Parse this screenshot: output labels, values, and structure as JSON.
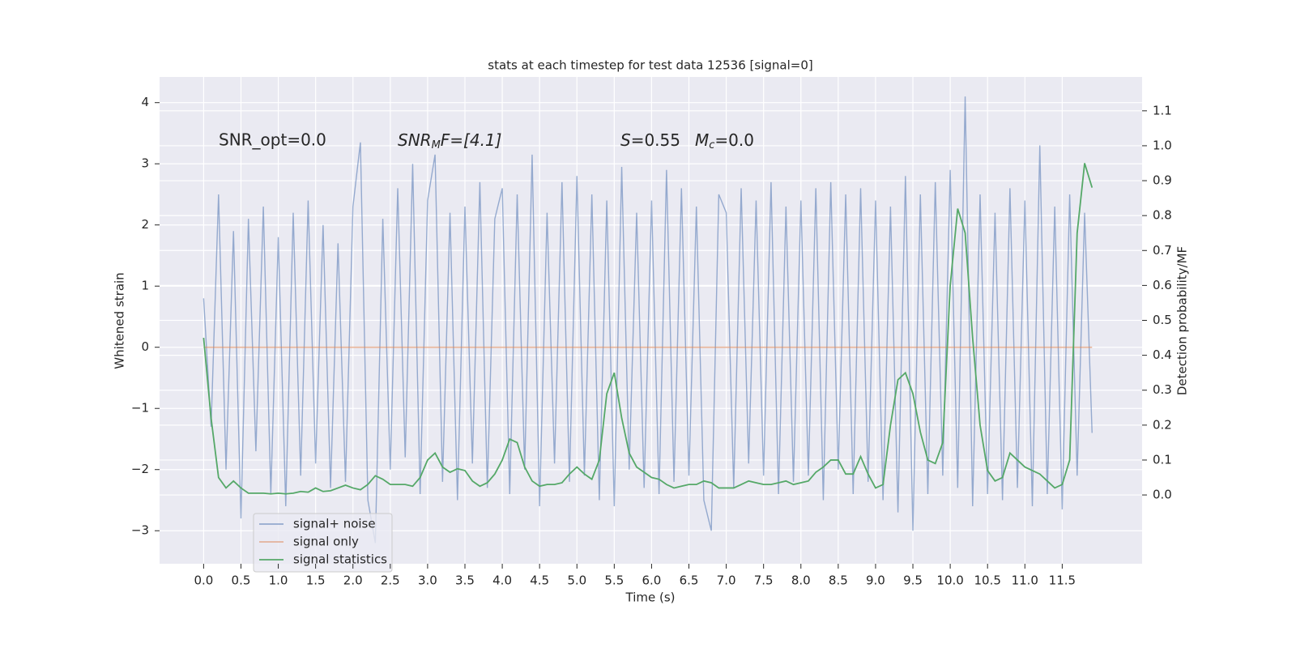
{
  "chart_data": {
    "type": "line",
    "title": "stats at each timestep for test data 12536 [signal=0]",
    "xlabel": "Time (s)",
    "ylabel": "Whitened strain",
    "y2label": "Detection probability/MF",
    "annotations": [
      "SNR_opt=0.0",
      [
        "SNR",
        "M",
        "F=[4.1]"
      ],
      [
        "S",
        "=0.55",
        "M",
        "c",
        "=0.0"
      ]
    ],
    "grid": true,
    "legend": "lower left",
    "xlim": [
      -0.59,
      12.57
    ],
    "ylim": [
      -3.54,
      4.42
    ],
    "y2lim": [
      -0.197,
      1.197
    ],
    "xticks": [
      {
        "value": 0,
        "label": "0.0"
      },
      {
        "value": 0.5,
        "label": "0.5"
      },
      {
        "value": 1,
        "label": "1.0"
      },
      {
        "value": 1.5,
        "label": "1.5"
      },
      {
        "value": 2,
        "label": "2.0"
      },
      {
        "value": 2.5,
        "label": "2.5"
      },
      {
        "value": 3,
        "label": "3.0"
      },
      {
        "value": 3.5,
        "label": "3.5"
      },
      {
        "value": 4,
        "label": "4.0"
      },
      {
        "value": 4.5,
        "label": "4.5"
      },
      {
        "value": 5,
        "label": "5.0"
      },
      {
        "value": 5.5,
        "label": "5.5"
      },
      {
        "value": 6,
        "label": "6.0"
      },
      {
        "value": 6.5,
        "label": "6.5"
      },
      {
        "value": 7,
        "label": "7.0"
      },
      {
        "value": 7.5,
        "label": "7.5"
      },
      {
        "value": 8,
        "label": "8.0"
      },
      {
        "value": 8.5,
        "label": "8.5"
      },
      {
        "value": 9,
        "label": "9.0"
      },
      {
        "value": 9.5,
        "label": "9.5"
      },
      {
        "value": 10,
        "label": "10.0"
      },
      {
        "value": 10.5,
        "label": "10.5"
      },
      {
        "value": 11,
        "label": "11.0"
      },
      {
        "value": 11.5,
        "label": "11.5"
      }
    ],
    "yticks": [
      {
        "value": -3,
        "label": "−3"
      },
      {
        "value": -2,
        "label": "−2"
      },
      {
        "value": -1,
        "label": "−1"
      },
      0,
      1,
      2,
      3,
      4
    ],
    "y2ticks": [
      {
        "value": 0,
        "label": "0.0"
      },
      {
        "value": 0.1,
        "label": "0.1"
      },
      {
        "value": 0.2,
        "label": "0.2"
      },
      {
        "value": 0.3,
        "label": "0.3"
      },
      {
        "value": 0.4,
        "label": "0.4"
      },
      {
        "value": 0.5,
        "label": "0.5"
      },
      {
        "value": 0.6,
        "label": "0.6"
      },
      {
        "value": 0.7,
        "label": "0.7"
      },
      {
        "value": 0.8,
        "label": "0.8"
      },
      {
        "value": 0.9,
        "label": "0.9"
      },
      {
        "value": 1,
        "label": "1.0"
      },
      {
        "value": 1.1,
        "label": "1.1"
      }
    ],
    "x": [
      0,
      0.1,
      0.2,
      0.3,
      0.4,
      0.5,
      0.6,
      0.7,
      0.8,
      0.9,
      1,
      1.1,
      1.2,
      1.3,
      1.4,
      1.5,
      1.6,
      1.7,
      1.8,
      1.9,
      2,
      2.1,
      2.2,
      2.3,
      2.4,
      2.5,
      2.6,
      2.7,
      2.8,
      2.9,
      3,
      3.1,
      3.2,
      3.3,
      3.4,
      3.5,
      3.6,
      3.7,
      3.8,
      3.9,
      4,
      4.1,
      4.2,
      4.3,
      4.4,
      4.5,
      4.6,
      4.7,
      4.8,
      4.9,
      5,
      5.1,
      5.2,
      5.3,
      5.4,
      5.5,
      5.6,
      5.7,
      5.8,
      5.9,
      6,
      6.1,
      6.2,
      6.3,
      6.4,
      6.5,
      6.6,
      6.7,
      6.8,
      6.9,
      7,
      7.1,
      7.2,
      7.3,
      7.4,
      7.5,
      7.6,
      7.7,
      7.8,
      7.9,
      8,
      8.1,
      8.2,
      8.3,
      8.4,
      8.5,
      8.6,
      8.7,
      8.8,
      8.9,
      9,
      9.1,
      9.2,
      9.3,
      9.4,
      9.5,
      9.6,
      9.7,
      9.8,
      9.9,
      10,
      10.1,
      10.2,
      10.3,
      10.4,
      10.5,
      10.6,
      10.7,
      10.8,
      10.9,
      11,
      11.1,
      11.2,
      11.3,
      11.4,
      11.5,
      11.6,
      11.7,
      11.8,
      11.9
    ],
    "series": [
      {
        "name": "signal+ noise",
        "color": "#4c72b0",
        "values": [
          0.8,
          -1.3,
          2.5,
          -2.0,
          1.9,
          -2.8,
          2.1,
          -1.7,
          2.3,
          -2.4,
          1.8,
          -2.6,
          2.2,
          -2.1,
          2.4,
          -1.9,
          2.0,
          -2.3,
          1.7,
          -2.2,
          2.3,
          3.35,
          -2.5,
          -3.2,
          2.1,
          -2.0,
          2.6,
          -1.8,
          3.0,
          -2.4,
          2.4,
          3.15,
          -2.2,
          2.2,
          -2.5,
          2.3,
          -1.9,
          2.7,
          -2.3,
          2.1,
          2.6,
          -2.4,
          2.5,
          -2.0,
          3.15,
          -2.6,
          2.2,
          -1.9,
          2.7,
          -2.2,
          2.8,
          -2.1,
          2.5,
          -2.5,
          2.4,
          -2.6,
          2.95,
          -2.0,
          2.2,
          -2.3,
          2.4,
          -2.4,
          2.9,
          -2.2,
          2.6,
          -2.1,
          2.3,
          -2.5,
          -3.0,
          2.5,
          2.2,
          -2.3,
          2.6,
          -1.9,
          2.4,
          -2.1,
          2.7,
          -2.4,
          2.3,
          -2.2,
          2.4,
          -2.1,
          2.6,
          -2.5,
          2.7,
          -2.0,
          2.5,
          -2.4,
          2.6,
          -2.2,
          2.4,
          -2.5,
          2.3,
          -2.7,
          2.8,
          -3.0,
          2.5,
          -2.4,
          2.7,
          -2.1,
          2.9,
          -2.3,
          4.1,
          -2.6,
          2.5,
          -2.4,
          2.2,
          -2.5,
          2.6,
          -2.3,
          2.4,
          -2.6,
          3.3,
          -2.4,
          2.3,
          -2.65,
          2.5,
          -2.1,
          2.2,
          -1.4
        ]
      },
      {
        "name": "signal only",
        "color": "#dd8452",
        "values": [
          0,
          0,
          0,
          0,
          0,
          0,
          0,
          0,
          0,
          0,
          0,
          0,
          0,
          0,
          0,
          0,
          0,
          0,
          0,
          0,
          0,
          0,
          0,
          0,
          0,
          0,
          0,
          0,
          0,
          0,
          0,
          0,
          0,
          0,
          0,
          0,
          0,
          0,
          0,
          0,
          0,
          0,
          0,
          0,
          0,
          0,
          0,
          0,
          0,
          0,
          0,
          0,
          0,
          0,
          0,
          0,
          0,
          0,
          0,
          0,
          0,
          0,
          0,
          0,
          0,
          0,
          0,
          0,
          0,
          0,
          0,
          0,
          0,
          0,
          0,
          0,
          0,
          0,
          0,
          0,
          0,
          0,
          0,
          0,
          0,
          0,
          0,
          0,
          0,
          0,
          0,
          0,
          0,
          0,
          0,
          0,
          0,
          0,
          0,
          0,
          0,
          0,
          0,
          0,
          0,
          0,
          0,
          0,
          0,
          0,
          0,
          0,
          0,
          0,
          0,
          0,
          0,
          0,
          0,
          0
        ]
      },
      {
        "name": "signal statistics",
        "color": "#55a868",
        "axis": "y2",
        "values": [
          0.45,
          0.22,
          0.05,
          0.02,
          0.04,
          0.02,
          0.005,
          0.005,
          0.005,
          0.003,
          0.005,
          0.003,
          0.005,
          0.01,
          0.008,
          0.02,
          0.01,
          0.012,
          0.02,
          0.028,
          0.02,
          0.015,
          0.03,
          0.055,
          0.045,
          0.03,
          0.03,
          0.03,
          0.025,
          0.05,
          0.1,
          0.12,
          0.08,
          0.065,
          0.075,
          0.07,
          0.04,
          0.025,
          0.035,
          0.06,
          0.1,
          0.16,
          0.15,
          0.08,
          0.04,
          0.025,
          0.03,
          0.03,
          0.035,
          0.06,
          0.08,
          0.06,
          0.045,
          0.1,
          0.29,
          0.35,
          0.22,
          0.12,
          0.08,
          0.065,
          0.05,
          0.045,
          0.03,
          0.02,
          0.025,
          0.03,
          0.03,
          0.04,
          0.035,
          0.02,
          0.02,
          0.02,
          0.03,
          0.04,
          0.035,
          0.03,
          0.03,
          0.035,
          0.04,
          0.03,
          0.035,
          0.04,
          0.065,
          0.08,
          0.1,
          0.1,
          0.06,
          0.06,
          0.11,
          0.06,
          0.02,
          0.03,
          0.2,
          0.33,
          0.35,
          0.29,
          0.18,
          0.1,
          0.09,
          0.15,
          0.6,
          0.82,
          0.75,
          0.45,
          0.2,
          0.07,
          0.04,
          0.05,
          0.12,
          0.1,
          0.08,
          0.07,
          0.06,
          0.04,
          0.02,
          0.03,
          0.1,
          0.75,
          0.95,
          0.88
        ]
      }
    ]
  }
}
